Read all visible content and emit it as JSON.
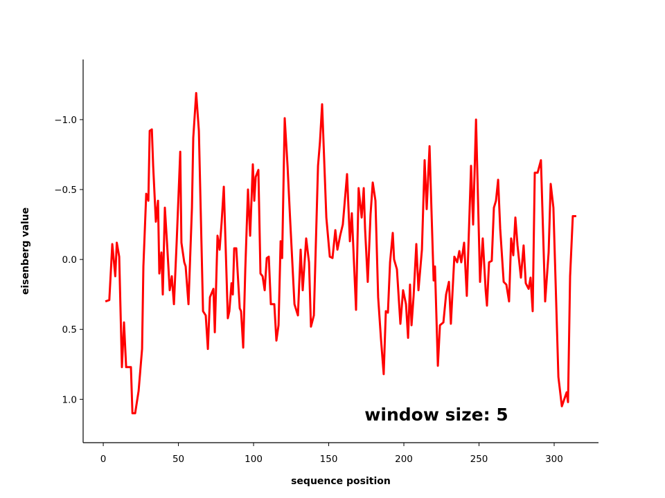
{
  "chart_data": {
    "type": "line",
    "xlabel": "sequence position",
    "ylabel": "eisenberg value",
    "annotation": "window size: 5",
    "x": [
      1.4,
      4,
      6,
      8,
      9,
      10.6,
      12.4,
      13.8,
      15.2,
      18.4,
      19.4,
      21.2,
      23.5,
      25.8,
      26.7,
      28.6,
      30,
      30.9,
      32.3,
      33.2,
      35,
      36.4,
      37.3,
      38.7,
      39.6,
      41,
      42.4,
      44.2,
      45.6,
      47,
      48.8,
      51.2,
      52,
      53.9,
      54.8,
      56.7,
      59,
      59.9,
      61.8,
      63.6,
      66.4,
      68.2,
      69.6,
      71,
      73.3,
      74.2,
      76,
      77.4,
      78.8,
      80.2,
      82.9,
      83.9,
      85.3,
      86.2,
      87.1,
      88.5,
      90.8,
      91.7,
      93.1,
      94.5,
      96.3,
      97.7,
      99.5,
      100.5,
      101.4,
      103.2,
      104.6,
      106,
      107.4,
      108.8,
      110.1,
      111.5,
      113.8,
      115.2,
      116.6,
      118,
      119,
      120.7,
      122.6,
      124.4,
      127.2,
      129.5,
      131.3,
      132.7,
      135,
      136.9,
      138.2,
      140.1,
      142.9,
      144.2,
      145.6,
      148.4,
      150.7,
      152.5,
      154.4,
      155.8,
      157.6,
      159.4,
      162.2,
      164.1,
      165.4,
      168.2,
      169.9,
      171.9,
      173.3,
      174.2,
      176,
      177.8,
      179.3,
      181.1,
      182.9,
      184.8,
      186.6,
      188,
      189.4,
      190.8,
      192.6,
      193.5,
      195.4,
      197.7,
      199.5,
      201.4,
      202.8,
      204.1,
      205.1,
      206.5,
      208.3,
      209.7,
      212,
      213.8,
      215.2,
      217.1,
      218.4,
      219.8,
      220.7,
      222.6,
      224,
      226.3,
      228.1,
      230,
      231.3,
      233.6,
      235.5,
      236.9,
      238.2,
      240.1,
      241.9,
      244.7,
      246.1,
      248,
      250.7,
      252.5,
      254.4,
      255.3,
      256.7,
      258.5,
      259.9,
      261.3,
      262.7,
      264.1,
      266.4,
      268.2,
      270,
      271.4,
      272.8,
      274.2,
      275.6,
      277.9,
      279.7,
      281.1,
      283,
      284.3,
      285.7,
      287.1,
      289,
      291.2,
      294,
      296.3,
      297.7,
      299.5,
      302.8,
      305.1,
      308.3,
      309.2,
      310.6,
      312.4,
      314.7
    ],
    "series": [
      {
        "color": "#ff0000",
        "values": [
          0.3,
          0.29,
          -0.11,
          0.12,
          -0.12,
          -0.02,
          0.77,
          0.45,
          0.77,
          0.77,
          1.1,
          1.1,
          0.94,
          0.64,
          0.05,
          -0.47,
          -0.42,
          -0.92,
          -0.93,
          -0.67,
          -0.27,
          -0.42,
          0.1,
          -0.05,
          0.25,
          -0.37,
          -0.12,
          0.22,
          0.12,
          0.32,
          -0.12,
          -0.77,
          -0.12,
          0.02,
          0.05,
          0.32,
          -0.37,
          -0.87,
          -1.19,
          -0.92,
          0.37,
          0.4,
          0.64,
          0.27,
          0.21,
          0.52,
          -0.17,
          -0.07,
          -0.27,
          -0.52,
          0.42,
          0.37,
          0.17,
          0.25,
          -0.08,
          -0.08,
          0.35,
          0.37,
          0.63,
          0.07,
          -0.5,
          -0.17,
          -0.68,
          -0.42,
          -0.59,
          -0.64,
          0.1,
          0.12,
          0.22,
          -0.01,
          -0.02,
          0.32,
          0.32,
          0.58,
          0.47,
          -0.13,
          -0.01,
          -1.01,
          -0.67,
          -0.27,
          0.32,
          0.4,
          -0.07,
          0.22,
          -0.15,
          0.02,
          0.48,
          0.4,
          -0.67,
          -0.84,
          -1.11,
          -0.3,
          -0.02,
          -0.01,
          -0.21,
          -0.07,
          -0.17,
          -0.25,
          -0.61,
          -0.13,
          -0.33,
          0.36,
          -0.51,
          -0.3,
          -0.51,
          -0.22,
          0.16,
          -0.32,
          -0.55,
          -0.42,
          0.27,
          0.57,
          0.82,
          0.37,
          0.38,
          0.02,
          -0.19,
          0.0,
          0.07,
          0.46,
          0.22,
          0.32,
          0.56,
          0.18,
          0.47,
          0.26,
          -0.11,
          0.22,
          -0.07,
          -0.71,
          -0.36,
          -0.81,
          -0.35,
          0.15,
          0.05,
          0.76,
          0.47,
          0.45,
          0.25,
          0.16,
          0.46,
          -0.02,
          0.02,
          -0.06,
          0.02,
          -0.12,
          0.26,
          -0.67,
          -0.25,
          -1.0,
          0.16,
          -0.15,
          0.22,
          0.33,
          0.02,
          0.01,
          -0.37,
          -0.42,
          -0.57,
          -0.22,
          0.16,
          0.18,
          0.3,
          -0.15,
          -0.03,
          -0.3,
          -0.1,
          0.13,
          -0.1,
          0.17,
          0.21,
          0.13,
          0.37,
          -0.62,
          -0.62,
          -0.71,
          0.3,
          -0.05,
          -0.54,
          -0.37,
          0.84,
          1.05,
          0.95,
          1.02,
          0.12,
          -0.31,
          -0.31
        ]
      }
    ],
    "xlim": [
      -13.4,
      329.5
    ],
    "xticks": [
      0,
      50,
      100,
      150,
      200,
      250,
      300
    ],
    "ylim": [
      1.31,
      -1.43
    ],
    "yticks": [
      {
        "value": -1,
        "label": "−1.0"
      },
      {
        "value": -0.5,
        "label": "−0.5"
      },
      {
        "value": 0,
        "label": "0.0"
      },
      {
        "value": 0.5,
        "label": "0.5"
      },
      {
        "value": 1,
        "label": "1.0"
      }
    ]
  }
}
